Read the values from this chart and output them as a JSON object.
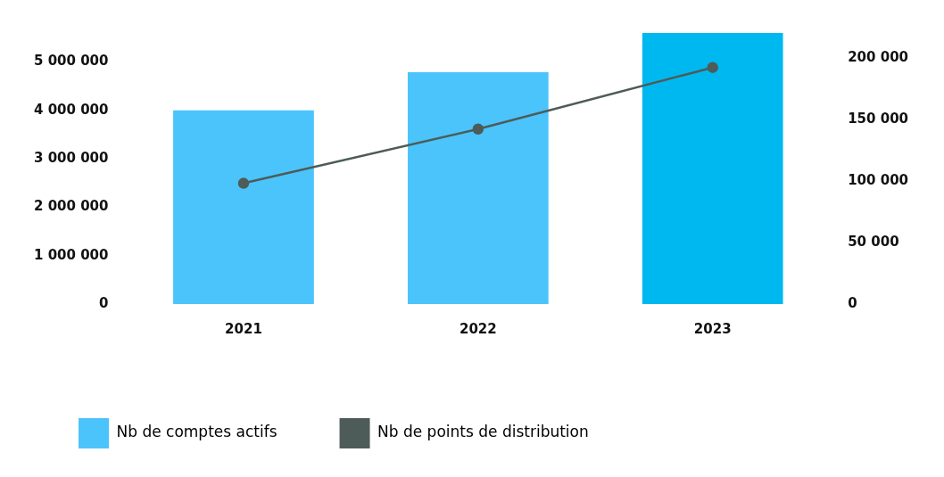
{
  "chart_data": {
    "type": "bar",
    "categories": [
      "2021",
      "2022",
      "2023"
    ],
    "series": [
      {
        "name": "Nb de comptes actifs",
        "colors": [
          "#4bc4fb",
          "#4bc4fb",
          "#00b8f0"
        ],
        "color": "#4bc4fb",
        "values": [
          4000000,
          4790000,
          5600000
        ]
      },
      {
        "name": "Nb de points de distribution",
        "type": "line",
        "axis": "y2",
        "color": "#4d5c58",
        "values": [
          98000,
          142000,
          192000
        ]
      }
    ],
    "ylim": [
      0,
      5600000
    ],
    "yticks": [
      {
        "value": 0,
        "label": "0"
      },
      {
        "value": 1000000,
        "label": "1 000 000"
      },
      {
        "value": 2000000,
        "label": "2 000 000"
      },
      {
        "value": 3000000,
        "label": "3 000 000"
      },
      {
        "value": 4000000,
        "label": "4 000 000"
      },
      {
        "value": 5000000,
        "label": "5 000 000"
      }
    ],
    "y2lim": [
      0,
      220000
    ],
    "y2ticks": [
      {
        "value": 0,
        "label": "0"
      },
      {
        "value": 50000,
        "label": "50 000"
      },
      {
        "value": 100000,
        "label": "100 000"
      },
      {
        "value": 150000,
        "label": "150 000"
      },
      {
        "value": 200000,
        "label": "200 000"
      }
    ],
    "grid": false,
    "legend": "bottom",
    "marker": "circle",
    "line_style": "solid"
  }
}
